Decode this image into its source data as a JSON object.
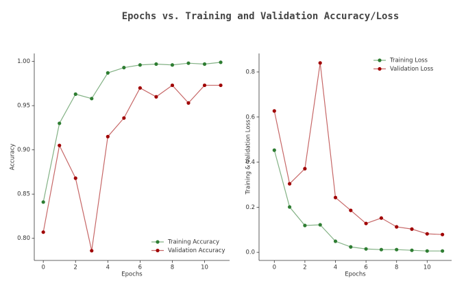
{
  "title": "Epochs vs. Training and Validation Accuracy/Loss",
  "chart_data": [
    {
      "type": "line",
      "xlabel": "Epochs",
      "ylabel": "Accuracy",
      "x": [
        0,
        1,
        2,
        3,
        4,
        5,
        6,
        7,
        8,
        9,
        10,
        11
      ],
      "series": [
        {
          "name": "Training Accuracy",
          "color": "#2e7d32",
          "values": [
            0.841,
            0.93,
            0.963,
            0.958,
            0.987,
            0.993,
            0.996,
            0.997,
            0.996,
            0.998,
            0.997,
            0.999
          ]
        },
        {
          "name": "Validation Accuracy",
          "color": "#a00000",
          "values": [
            0.807,
            0.905,
            0.868,
            0.786,
            0.915,
            0.936,
            0.97,
            0.96,
            0.973,
            0.953,
            0.973,
            0.973
          ]
        }
      ],
      "xlim": [
        -0.56,
        11.55
      ],
      "ylim": [
        0.775,
        1.009
      ],
      "xticks": [
        0,
        2,
        4,
        6,
        8,
        10
      ],
      "yticks": [
        {
          "value": 0.8,
          "label": "0.80"
        },
        {
          "value": 0.85,
          "label": "0.85"
        },
        {
          "value": 0.9,
          "label": "0.90"
        },
        {
          "value": 0.95,
          "label": "0.95"
        },
        {
          "value": 1.0,
          "label": "1.00"
        }
      ],
      "legend": "lower right",
      "grid": false
    },
    {
      "type": "line",
      "xlabel": "Epochs",
      "ylabel": "Training & Validation Loss",
      "x": [
        0,
        1,
        2,
        3,
        4,
        5,
        6,
        7,
        8,
        9,
        10,
        11
      ],
      "series": [
        {
          "name": "Training Loss",
          "color": "#2e7d32",
          "values": [
            0.453,
            0.201,
            0.119,
            0.122,
            0.049,
            0.024,
            0.015,
            0.012,
            0.012,
            0.009,
            0.006,
            0.006
          ]
        },
        {
          "name": "Validation Loss",
          "color": "#a00000",
          "values": [
            0.627,
            0.304,
            0.371,
            0.84,
            0.243,
            0.186,
            0.128,
            0.152,
            0.113,
            0.103,
            0.082,
            0.079
          ]
        }
      ],
      "xlim": [
        -1.0,
        11.6
      ],
      "ylim": [
        -0.036,
        0.882
      ],
      "xticks": [
        0,
        2,
        4,
        6,
        8,
        10
      ],
      "yticks": [
        {
          "value": 0,
          "label": "0.0"
        },
        0.2,
        0.4,
        0.6,
        0.8
      ],
      "legend": "upper right",
      "grid": false
    }
  ]
}
